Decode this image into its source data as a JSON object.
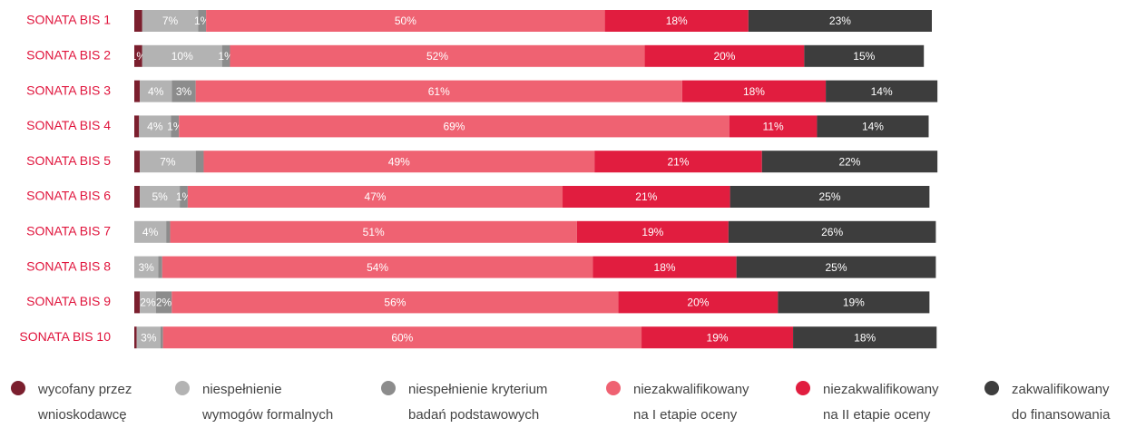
{
  "chart_data": {
    "type": "bar",
    "orientation": "horizontal",
    "stacked": true,
    "categories": [
      "SONATA BIS 1",
      "SONATA BIS 2",
      "SONATA BIS 3",
      "SONATA BIS 4",
      "SONATA BIS 5",
      "SONATA BIS 6",
      "SONATA BIS 7",
      "SONATA BIS 8",
      "SONATA BIS 9",
      "SONATA BIS 10"
    ],
    "xlim": [
      0,
      100
    ],
    "series": [
      {
        "name": "wycofany przez wnioskodawcę",
        "color": "#7b1f2e",
        "values": [
          1,
          1,
          0.7,
          0.6,
          0.7,
          0.7,
          0,
          0,
          0.7,
          0.3
        ],
        "value_labels": [
          null,
          "1%",
          null,
          null,
          null,
          null,
          null,
          null,
          null,
          null
        ]
      },
      {
        "name": "niespełnienie wymogów formalnych",
        "color": "#b3b3b3",
        "values": [
          7,
          10,
          4,
          4,
          7,
          5,
          4,
          3,
          2,
          3
        ],
        "value_labels": [
          "7%",
          "10%",
          "4%",
          "4%",
          "7%",
          "5%",
          "4%",
          "3%",
          "2%",
          "3%"
        ]
      },
      {
        "name": "niespełnienie kryterium badań podstawowych",
        "color": "#8c8c8c",
        "values": [
          1,
          1,
          3,
          1,
          1,
          1,
          0.5,
          0.5,
          2,
          0.3
        ],
        "value_labels": [
          "1%",
          "1%",
          "3%",
          "1%",
          null,
          "1%",
          null,
          null,
          "2%",
          null
        ]
      },
      {
        "name": "niezakwalifikowany na I etapie oceny",
        "color": "#ef6272",
        "values": [
          50,
          52,
          61,
          69,
          49,
          47,
          51,
          54,
          56,
          60
        ],
        "value_labels": [
          "50%",
          "52%",
          "61%",
          "69%",
          "49%",
          "47%",
          "51%",
          "54%",
          "56%",
          "60%"
        ]
      },
      {
        "name": "niezakwalifikowany na II etapie oceny",
        "color": "#e11d3f",
        "values": [
          18,
          20,
          18,
          11,
          21,
          21,
          19,
          18,
          20,
          19
        ],
        "value_labels": [
          "18%",
          "20%",
          "18%",
          "11%",
          "21%",
          "21%",
          "19%",
          "18%",
          "20%",
          "19%"
        ]
      },
      {
        "name": "zakwalifikowany do finansowania",
        "color": "#3d3d3d",
        "values": [
          23,
          15,
          14,
          14,
          22,
          25,
          26,
          25,
          19,
          18
        ],
        "value_labels": [
          "23%",
          "15%",
          "14%",
          "14%",
          "22%",
          "25%",
          "26%",
          "25%",
          "19%",
          "18%"
        ]
      }
    ]
  }
}
